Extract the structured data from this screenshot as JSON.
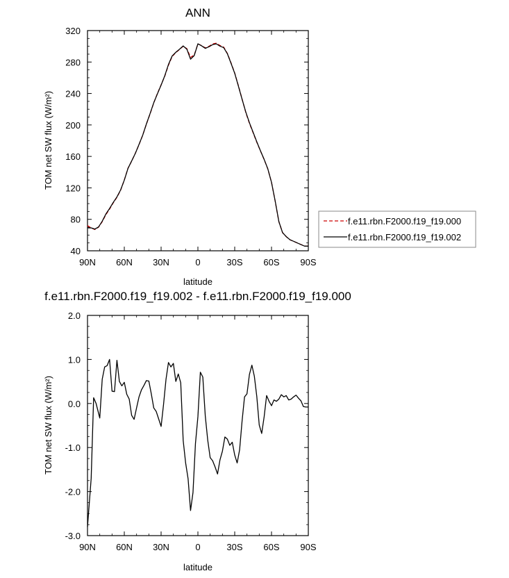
{
  "chart_data": [
    {
      "type": "line",
      "title": "ANN",
      "xlabel": "latitude",
      "ylabel": "TOM net SW flux (W/m²)",
      "xlim": [
        90,
        -90
      ],
      "ylim": [
        40,
        320
      ],
      "x_ticks": [
        90,
        60,
        30,
        0,
        -30,
        -60,
        -90
      ],
      "x_tick_labels": [
        "90N",
        "60N",
        "30N",
        "0",
        "30S",
        "60S",
        "90S"
      ],
      "y_ticks": [
        40,
        80,
        120,
        160,
        200,
        240,
        280,
        320
      ],
      "y_tick_labels": [
        "40",
        "80",
        "120",
        "160",
        "200",
        "240",
        "280",
        "320"
      ],
      "legend_position": "right",
      "x": [
        90,
        87,
        84,
        81,
        78,
        75,
        72,
        69,
        66,
        63,
        60,
        57,
        54,
        51,
        48,
        45,
        42,
        39,
        36,
        33,
        30,
        27,
        24,
        21,
        18,
        15,
        12,
        9,
        6,
        3,
        0,
        -3,
        -6,
        -9,
        -12,
        -15,
        -18,
        -21,
        -24,
        -27,
        -30,
        -33,
        -36,
        -39,
        -42,
        -45,
        -48,
        -51,
        -54,
        -57,
        -60,
        -63,
        -66,
        -69,
        -72,
        -75,
        -78,
        -81,
        -84,
        -87,
        -90
      ],
      "series": [
        {
          "name": "f.e11.rbn.F2000.f19_f19.000",
          "color": "#cc0000",
          "dash": "dashed",
          "values": [
            72,
            69,
            67,
            70,
            77,
            86,
            93,
            101,
            108,
            117,
            130,
            145,
            154,
            164,
            175,
            187,
            201,
            214,
            228,
            240,
            251,
            262,
            276,
            287,
            292,
            296,
            300,
            297,
            286,
            289,
            303,
            301,
            298,
            300,
            303,
            304,
            301,
            299,
            291,
            279,
            266,
            250,
            233,
            216,
            202,
            190,
            178,
            167,
            156,
            144,
            127,
            103,
            77,
            63,
            58,
            54,
            52,
            50,
            48,
            46,
            46
          ]
        },
        {
          "name": "f.e11.rbn.F2000.f19_f19.002",
          "color": "#000000",
          "dash": "solid",
          "values": [
            69.2,
            69.1,
            67.6,
            70.3,
            77.6,
            86.8,
            93.8,
            101.5,
            108.5,
            117.4,
            129.8,
            144.7,
            154.2,
            163.9,
            175.2,
            186.9,
            201.2,
            214.4,
            228.2,
            239.6,
            250.7,
            262.6,
            276.9,
            287.7,
            292.4,
            296.3,
            300.5,
            296.3,
            283.6,
            288.2,
            303.2,
            300.6,
            297.4,
            299.4,
            302.1,
            303.1,
            300.2,
            298.3,
            290.6,
            278.4,
            265.7,
            249.4,
            232.7,
            216.6,
            202.8,
            190.7,
            178.6,
            167.1,
            156.2,
            144.1,
            127.0,
            103.1,
            77.1,
            63.1,
            58.0,
            54.1,
            52.1,
            50.0,
            47.9,
            45.9,
            45.9
          ]
        }
      ]
    },
    {
      "type": "line",
      "title": "f.e11.rbn.F2000.f19_f19.002 - f.e11.rbn.F2000.f19_f19.000",
      "xlabel": "latitude",
      "ylabel": "TOM net SW flux (W/m²)",
      "xlim": [
        90,
        -90
      ],
      "ylim": [
        -3.0,
        2.0
      ],
      "x_ticks": [
        90,
        60,
        30,
        0,
        -30,
        -60,
        -90
      ],
      "x_tick_labels": [
        "90N",
        "60N",
        "30N",
        "0",
        "30S",
        "60S",
        "90S"
      ],
      "y_ticks": [
        -3.0,
        -2.0,
        -1.0,
        0.0,
        1.0,
        2.0
      ],
      "y_tick_labels": [
        "-3.0",
        "-2.0",
        "-1.0",
        "0.0",
        "1.0",
        "2.0"
      ],
      "series": [
        {
          "name": "",
          "color": "#000000",
          "dash": "solid",
          "x": [
            90,
            87,
            85,
            83,
            80,
            78,
            76,
            74,
            72,
            70,
            68,
            66,
            64,
            62,
            60,
            58,
            56,
            54,
            52,
            50,
            48,
            46,
            44,
            42,
            40,
            38,
            36,
            34,
            32,
            30,
            28,
            26,
            24,
            22,
            20,
            18,
            16,
            14,
            12,
            10,
            8,
            6,
            4,
            2,
            0,
            -2,
            -4,
            -6,
            -8,
            -10,
            -12,
            -14,
            -16,
            -18,
            -20,
            -22,
            -24,
            -26,
            -28,
            -30,
            -32,
            -34,
            -36,
            -38,
            -40,
            -42,
            -44,
            -46,
            -48,
            -50,
            -52,
            -54,
            -56,
            -58,
            -60,
            -62,
            -64,
            -66,
            -68,
            -70,
            -72,
            -74,
            -76,
            -78,
            -80,
            -82,
            -84,
            -86,
            -88,
            -90
          ],
          "values": [
            -2.8,
            -1.7,
            0.13,
            0.0,
            -0.33,
            0.55,
            0.83,
            0.86,
            1.0,
            0.28,
            0.27,
            0.98,
            0.5,
            0.4,
            0.48,
            0.21,
            0.1,
            -0.27,
            -0.36,
            -0.1,
            0.15,
            0.31,
            0.41,
            0.52,
            0.51,
            0.22,
            -0.1,
            -0.18,
            -0.35,
            -0.52,
            -0.02,
            0.55,
            0.93,
            0.83,
            0.91,
            0.5,
            0.67,
            0.47,
            -0.84,
            -1.35,
            -1.71,
            -2.43,
            -2.02,
            -0.91,
            -0.3,
            0.71,
            0.6,
            -0.28,
            -0.83,
            -1.23,
            -1.3,
            -1.44,
            -1.6,
            -1.28,
            -1.08,
            -0.76,
            -0.81,
            -0.95,
            -0.88,
            -1.17,
            -1.35,
            -1.05,
            -0.4,
            0.15,
            0.22,
            0.66,
            0.87,
            0.62,
            0.16,
            -0.49,
            -0.68,
            -0.3,
            0.18,
            0.05,
            -0.05,
            0.08,
            0.05,
            0.1,
            0.2,
            0.15,
            0.18,
            0.08,
            0.1,
            0.15,
            0.19,
            0.12,
            0.06,
            -0.07,
            -0.08,
            -0.08
          ]
        }
      ]
    }
  ]
}
